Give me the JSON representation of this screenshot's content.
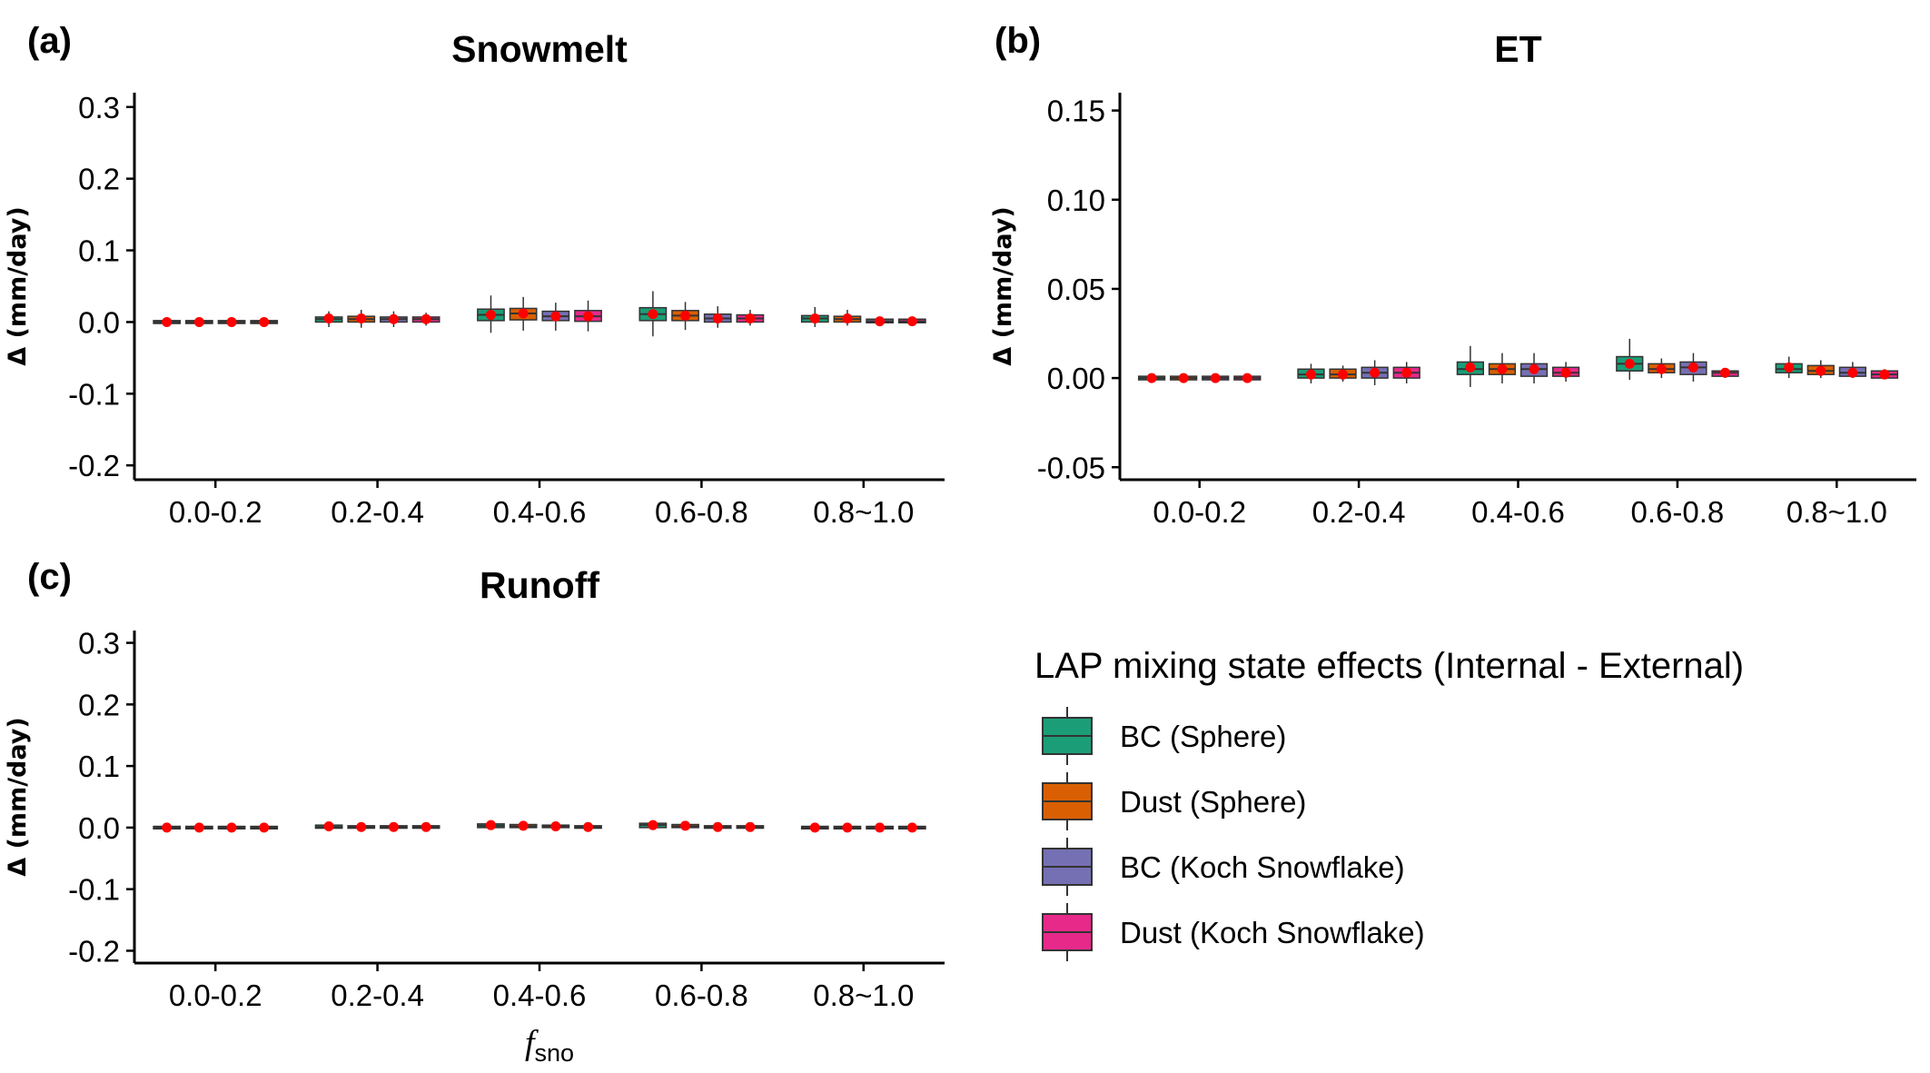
{
  "legend": {
    "title": "LAP mixing state effects (Internal - External)",
    "items": [
      {
        "label": "BC (Sphere)",
        "color": "#1b9e77"
      },
      {
        "label": "Dust (Sphere)",
        "color": "#d95f02"
      },
      {
        "label": "BC (Koch Snowflake)",
        "color": "#7570b3"
      },
      {
        "label": "Dust (Koch Snowflake)",
        "color": "#e7298a"
      }
    ]
  },
  "x_axis": {
    "main": "f",
    "sub": "sno"
  },
  "mean_marker_color": "#ff0000",
  "chart_data": [
    {
      "id": "a",
      "panel_label": "(a)",
      "type": "box",
      "title": "Snowmelt",
      "ylabel": "Δ (mm/day)",
      "xlabel": "",
      "categories": [
        "0.0-0.2",
        "0.2-0.4",
        "0.4-0.6",
        "0.6-0.8",
        "0.8~1.0"
      ],
      "ylim": [
        -0.22,
        0.32
      ],
      "yticks": [
        -0.2,
        -0.1,
        0.0,
        0.1,
        0.2,
        0.3
      ],
      "ytick_labels": [
        "-0.2",
        "-0.1",
        "0.0",
        "0.1",
        "0.2",
        "0.3"
      ],
      "series": [
        {
          "name": "BC (Sphere)",
          "boxes": [
            {
              "q1": -0.002,
              "q3": 0.002,
              "median": 0.0,
              "low": -0.003,
              "high": 0.003,
              "mean": 0.0
            },
            {
              "q1": 0.0,
              "q3": 0.007,
              "median": 0.004,
              "low": -0.007,
              "high": 0.015,
              "mean": 0.005
            },
            {
              "q1": 0.002,
              "q3": 0.018,
              "median": 0.01,
              "low": -0.015,
              "high": 0.037,
              "mean": 0.01
            },
            {
              "q1": 0.002,
              "q3": 0.02,
              "median": 0.011,
              "low": -0.02,
              "high": 0.043,
              "mean": 0.011
            },
            {
              "q1": 0.0,
              "q3": 0.009,
              "median": 0.005,
              "low": -0.007,
              "high": 0.021,
              "mean": 0.005
            }
          ]
        },
        {
          "name": "Dust (Sphere)",
          "boxes": [
            {
              "q1": -0.002,
              "q3": 0.002,
              "median": 0.0,
              "low": -0.003,
              "high": 0.003,
              "mean": 0.0
            },
            {
              "q1": 0.0,
              "q3": 0.008,
              "median": 0.004,
              "low": -0.008,
              "high": 0.017,
              "mean": 0.005
            },
            {
              "q1": 0.003,
              "q3": 0.019,
              "median": 0.012,
              "low": -0.012,
              "high": 0.035,
              "mean": 0.012
            },
            {
              "q1": 0.002,
              "q3": 0.016,
              "median": 0.009,
              "low": -0.011,
              "high": 0.028,
              "mean": 0.009
            },
            {
              "q1": 0.0,
              "q3": 0.008,
              "median": 0.004,
              "low": -0.005,
              "high": 0.017,
              "mean": 0.005
            }
          ]
        },
        {
          "name": "BC (Koch Snowflake)",
          "boxes": [
            {
              "q1": -0.002,
              "q3": 0.002,
              "median": 0.0,
              "low": -0.003,
              "high": 0.003,
              "mean": 0.0
            },
            {
              "q1": 0.0,
              "q3": 0.007,
              "median": 0.004,
              "low": -0.007,
              "high": 0.015,
              "mean": 0.004
            },
            {
              "q1": 0.002,
              "q3": 0.015,
              "median": 0.008,
              "low": -0.012,
              "high": 0.027,
              "mean": 0.008
            },
            {
              "q1": 0.0,
              "q3": 0.011,
              "median": 0.005,
              "low": -0.008,
              "high": 0.022,
              "mean": 0.005
            },
            {
              "q1": -0.001,
              "q3": 0.004,
              "median": 0.001,
              "low": -0.003,
              "high": 0.006,
              "mean": 0.001
            }
          ]
        },
        {
          "name": "Dust (Koch Snowflake)",
          "boxes": [
            {
              "q1": -0.002,
              "q3": 0.002,
              "median": 0.0,
              "low": -0.003,
              "high": 0.003,
              "mean": 0.0
            },
            {
              "q1": 0.0,
              "q3": 0.007,
              "median": 0.004,
              "low": -0.005,
              "high": 0.013,
              "mean": 0.004
            },
            {
              "q1": 0.001,
              "q3": 0.016,
              "median": 0.008,
              "low": -0.013,
              "high": 0.03,
              "mean": 0.008
            },
            {
              "q1": 0.0,
              "q3": 0.01,
              "median": 0.005,
              "low": -0.005,
              "high": 0.017,
              "mean": 0.005
            },
            {
              "q1": -0.001,
              "q3": 0.004,
              "median": 0.001,
              "low": -0.003,
              "high": 0.005,
              "mean": 0.001
            }
          ]
        }
      ]
    },
    {
      "id": "b",
      "panel_label": "(b)",
      "type": "box",
      "title": "ET",
      "ylabel": "Δ (mm/day)",
      "xlabel": "",
      "categories": [
        "0.0-0.2",
        "0.2-0.4",
        "0.4-0.6",
        "0.6-0.8",
        "0.8~1.0"
      ],
      "ylim": [
        -0.057,
        0.16
      ],
      "yticks": [
        -0.05,
        0.0,
        0.05,
        0.1,
        0.15
      ],
      "ytick_labels": [
        "-0.05",
        "0.00",
        "0.05",
        "0.10",
        "0.15"
      ],
      "series": [
        {
          "name": "BC (Sphere)",
          "boxes": [
            {
              "q1": -0.001,
              "q3": 0.001,
              "median": 0.0,
              "low": -0.002,
              "high": 0.002,
              "mean": 0.0
            },
            {
              "q1": 0.0,
              "q3": 0.005,
              "median": 0.002,
              "low": -0.003,
              "high": 0.008,
              "mean": 0.002
            },
            {
              "q1": 0.002,
              "q3": 0.009,
              "median": 0.005,
              "low": -0.005,
              "high": 0.018,
              "mean": 0.006
            },
            {
              "q1": 0.004,
              "q3": 0.012,
              "median": 0.008,
              "low": -0.001,
              "high": 0.022,
              "mean": 0.008
            },
            {
              "q1": 0.003,
              "q3": 0.008,
              "median": 0.005,
              "low": 0.0,
              "high": 0.012,
              "mean": 0.006
            }
          ]
        },
        {
          "name": "Dust (Sphere)",
          "boxes": [
            {
              "q1": -0.001,
              "q3": 0.001,
              "median": 0.0,
              "low": -0.002,
              "high": 0.002,
              "mean": 0.0
            },
            {
              "q1": 0.0,
              "q3": 0.005,
              "median": 0.002,
              "low": -0.002,
              "high": 0.007,
              "mean": 0.002
            },
            {
              "q1": 0.002,
              "q3": 0.008,
              "median": 0.005,
              "low": -0.003,
              "high": 0.014,
              "mean": 0.005
            },
            {
              "q1": 0.003,
              "q3": 0.008,
              "median": 0.005,
              "low": 0.0,
              "high": 0.011,
              "mean": 0.005
            },
            {
              "q1": 0.002,
              "q3": 0.007,
              "median": 0.004,
              "low": 0.0,
              "high": 0.01,
              "mean": 0.004
            }
          ]
        },
        {
          "name": "BC (Koch Snowflake)",
          "boxes": [
            {
              "q1": -0.001,
              "q3": 0.001,
              "median": 0.0,
              "low": -0.002,
              "high": 0.002,
              "mean": 0.0
            },
            {
              "q1": 0.0,
              "q3": 0.006,
              "median": 0.003,
              "low": -0.004,
              "high": 0.01,
              "mean": 0.003
            },
            {
              "q1": 0.001,
              "q3": 0.008,
              "median": 0.005,
              "low": -0.003,
              "high": 0.014,
              "mean": 0.005
            },
            {
              "q1": 0.002,
              "q3": 0.009,
              "median": 0.006,
              "low": -0.002,
              "high": 0.014,
              "mean": 0.006
            },
            {
              "q1": 0.001,
              "q3": 0.006,
              "median": 0.003,
              "low": 0.0,
              "high": 0.009,
              "mean": 0.003
            }
          ]
        },
        {
          "name": "Dust (Koch Snowflake)",
          "boxes": [
            {
              "q1": -0.001,
              "q3": 0.001,
              "median": 0.0,
              "low": -0.002,
              "high": 0.002,
              "mean": 0.0
            },
            {
              "q1": 0.0,
              "q3": 0.006,
              "median": 0.003,
              "low": -0.003,
              "high": 0.009,
              "mean": 0.003
            },
            {
              "q1": 0.001,
              "q3": 0.006,
              "median": 0.003,
              "low": -0.002,
              "high": 0.009,
              "mean": 0.003
            },
            {
              "q1": 0.001,
              "q3": 0.004,
              "median": 0.003,
              "low": 0.0,
              "high": 0.005,
              "mean": 0.003
            },
            {
              "q1": 0.0,
              "q3": 0.004,
              "median": 0.002,
              "low": 0.0,
              "high": 0.005,
              "mean": 0.002
            }
          ]
        }
      ]
    },
    {
      "id": "c",
      "panel_label": "(c)",
      "type": "box",
      "title": "Runoff",
      "ylabel": "Δ (mm/day)",
      "xlabel": "",
      "categories": [
        "0.0-0.2",
        "0.2-0.4",
        "0.4-0.6",
        "0.6-0.8",
        "0.8~1.0"
      ],
      "ylim": [
        -0.22,
        0.32
      ],
      "yticks": [
        -0.2,
        -0.1,
        0.0,
        0.1,
        0.2,
        0.3
      ],
      "ytick_labels": [
        "-0.2",
        "-0.1",
        "0.0",
        "0.1",
        "0.2",
        "0.3"
      ],
      "series": [
        {
          "name": "BC (Sphere)",
          "boxes": [
            {
              "q1": -0.002,
              "q3": 0.002,
              "median": 0.0,
              "low": -0.003,
              "high": 0.003,
              "mean": 0.0
            },
            {
              "q1": -0.001,
              "q3": 0.004,
              "median": 0.001,
              "low": -0.003,
              "high": 0.006,
              "mean": 0.002
            },
            {
              "q1": 0.0,
              "q3": 0.006,
              "median": 0.003,
              "low": -0.002,
              "high": 0.008,
              "mean": 0.004
            },
            {
              "q1": 0.0,
              "q3": 0.007,
              "median": 0.004,
              "low": -0.002,
              "high": 0.009,
              "mean": 0.004
            },
            {
              "q1": -0.002,
              "q3": 0.002,
              "median": 0.0,
              "low": -0.003,
              "high": 0.003,
              "mean": 0.0
            }
          ]
        },
        {
          "name": "Dust (Sphere)",
          "boxes": [
            {
              "q1": -0.002,
              "q3": 0.002,
              "median": 0.0,
              "low": -0.003,
              "high": 0.003,
              "mean": 0.0
            },
            {
              "q1": -0.001,
              "q3": 0.003,
              "median": 0.001,
              "low": -0.003,
              "high": 0.005,
              "mean": 0.001
            },
            {
              "q1": 0.0,
              "q3": 0.005,
              "median": 0.002,
              "low": -0.002,
              "high": 0.007,
              "mean": 0.003
            },
            {
              "q1": 0.0,
              "q3": 0.005,
              "median": 0.002,
              "low": -0.002,
              "high": 0.007,
              "mean": 0.003
            },
            {
              "q1": -0.002,
              "q3": 0.002,
              "median": 0.0,
              "low": -0.003,
              "high": 0.003,
              "mean": 0.0
            }
          ]
        },
        {
          "name": "BC (Koch Snowflake)",
          "boxes": [
            {
              "q1": -0.002,
              "q3": 0.002,
              "median": 0.0,
              "low": -0.003,
              "high": 0.003,
              "mean": 0.0
            },
            {
              "q1": -0.001,
              "q3": 0.003,
              "median": 0.001,
              "low": -0.003,
              "high": 0.005,
              "mean": 0.001
            },
            {
              "q1": 0.0,
              "q3": 0.004,
              "median": 0.002,
              "low": -0.002,
              "high": 0.006,
              "mean": 0.002
            },
            {
              "q1": -0.001,
              "q3": 0.003,
              "median": 0.001,
              "low": -0.002,
              "high": 0.004,
              "mean": 0.001
            },
            {
              "q1": -0.002,
              "q3": 0.002,
              "median": 0.0,
              "low": -0.003,
              "high": 0.003,
              "mean": 0.0
            }
          ]
        },
        {
          "name": "Dust (Koch Snowflake)",
          "boxes": [
            {
              "q1": -0.002,
              "q3": 0.002,
              "median": 0.0,
              "low": -0.003,
              "high": 0.003,
              "mean": 0.0
            },
            {
              "q1": -0.001,
              "q3": 0.003,
              "median": 0.001,
              "low": -0.003,
              "high": 0.005,
              "mean": 0.001
            },
            {
              "q1": -0.001,
              "q3": 0.003,
              "median": 0.001,
              "low": -0.002,
              "high": 0.004,
              "mean": 0.001
            },
            {
              "q1": -0.001,
              "q3": 0.003,
              "median": 0.001,
              "low": -0.002,
              "high": 0.004,
              "mean": 0.001
            },
            {
              "q1": -0.002,
              "q3": 0.002,
              "median": 0.0,
              "low": -0.003,
              "high": 0.003,
              "mean": 0.0
            }
          ]
        }
      ]
    }
  ]
}
